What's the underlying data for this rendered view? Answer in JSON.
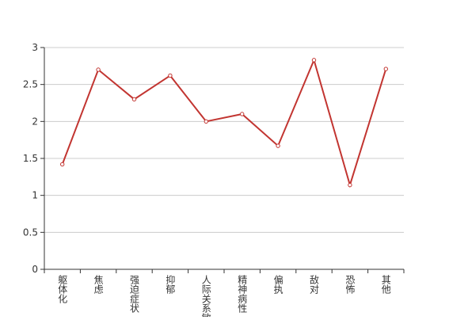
{
  "chart_data": {
    "type": "line",
    "categories": [
      "躯体化",
      "焦虑",
      "强迫症状",
      "抑郁",
      "人际关系敏感",
      "精神病性",
      "偏执",
      "敌对",
      "恐怖",
      "其他"
    ],
    "series": [
      {
        "color": "#c23531",
        "values": [
          1.42,
          2.7,
          2.3,
          2.62,
          2.0,
          2.1,
          1.67,
          2.83,
          1.14,
          2.71
        ]
      }
    ],
    "ylim": [
      0,
      3
    ],
    "yticks": [
      0,
      0.5,
      1,
      1.5,
      2,
      2.5,
      3
    ],
    "grid": true
  }
}
